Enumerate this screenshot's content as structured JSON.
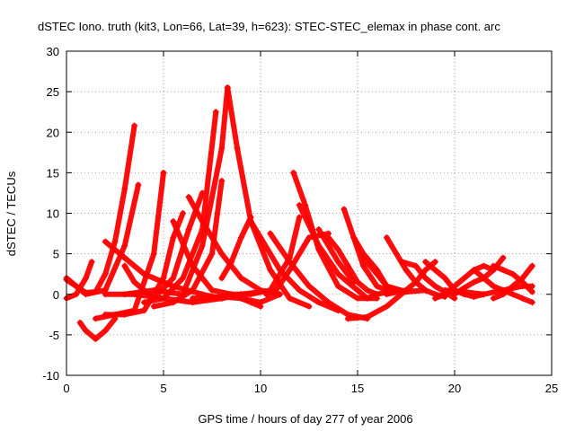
{
  "chart_data": {
    "type": "scatter",
    "title": "dSTEC Iono. truth (kit3, Lon=66, Lat=39, h=623): STEC-STEC_elemax in phase cont. arc",
    "xlabel": "GPS time / hours of day 277 of year 2006",
    "ylabel": "dSTEC  / TECUs",
    "xlim": [
      0,
      25
    ],
    "ylim": [
      -10,
      30
    ],
    "xticks": [
      0,
      5,
      10,
      15,
      20,
      25
    ],
    "yticks": [
      -10,
      -5,
      0,
      5,
      10,
      15,
      20,
      25,
      30
    ],
    "grid": true,
    "marker": "+",
    "color": "#ff0000",
    "series": [
      {
        "x": [
          0.0,
          0.5,
          1.0,
          1.5,
          2.0,
          2.5,
          3.0,
          3.5
        ],
        "y": [
          1.8,
          1.0,
          0.2,
          0.3,
          2.5,
          6.5,
          13.0,
          20.8
        ]
      },
      {
        "x": [
          0.0,
          0.5,
          1.0,
          1.3
        ],
        "y": [
          -0.5,
          0.0,
          2.0,
          4.0
        ]
      },
      {
        "x": [
          0.0,
          1.0,
          2.0,
          3.0,
          3.7
        ],
        "y": [
          2.0,
          0.0,
          0.5,
          6.0,
          13.5
        ]
      },
      {
        "x": [
          0.7,
          1.0,
          1.5,
          2.0,
          2.5
        ],
        "y": [
          -3.5,
          -4.5,
          -5.5,
          -4.5,
          -3.0
        ]
      },
      {
        "x": [
          1.5,
          2.5,
          3.5,
          4.5,
          5.0
        ],
        "y": [
          -3.0,
          -2.5,
          -2.0,
          5.0,
          15.0
        ]
      },
      {
        "x": [
          2.0,
          3.0,
          4.0,
          5.0,
          5.5,
          6.0
        ],
        "y": [
          -2.5,
          -2.5,
          -2.0,
          2.0,
          7.0,
          10.0
        ]
      },
      {
        "x": [
          2.0,
          3.0,
          4.0,
          5.5,
          7.0,
          8.0,
          9.0
        ],
        "y": [
          6.5,
          4.5,
          2.5,
          1.0,
          0.0,
          -0.5,
          0.0
        ]
      },
      {
        "x": [
          2.0,
          3.5,
          5.0,
          6.5,
          8.0,
          9.0,
          10.0
        ],
        "y": [
          0.0,
          0.0,
          -0.5,
          -1.0,
          -0.5,
          0.0,
          0.3
        ]
      },
      {
        "x": [
          3.0,
          4.5,
          6.0,
          7.0,
          8.0,
          8.3
        ],
        "y": [
          0.0,
          0.5,
          0.0,
          6.0,
          18.0,
          25.5
        ]
      },
      {
        "x": [
          3.0,
          3.5,
          4.5,
          5.5,
          6.3,
          7.0
        ],
        "y": [
          3.5,
          1.5,
          -0.5,
          2.0,
          8.0,
          12.5
        ]
      },
      {
        "x": [
          4.0,
          5.0,
          6.0,
          7.0,
          7.7
        ],
        "y": [
          -1.0,
          -0.5,
          2.0,
          8.0,
          22.5
        ]
      },
      {
        "x": [
          4.5,
          5.5,
          6.5,
          7.5,
          8.0
        ],
        "y": [
          -1.5,
          -1.0,
          0.5,
          5.0,
          14.0
        ]
      },
      {
        "x": [
          5.5,
          6.5,
          7.5,
          8.5,
          9.5,
          10.0
        ],
        "y": [
          9.0,
          3.5,
          0.5,
          0.0,
          -1.0,
          -1.5
        ]
      },
      {
        "x": [
          6.3,
          7.0,
          8.0,
          9.0,
          10.0,
          11.0
        ],
        "y": [
          12.0,
          9.0,
          5.0,
          2.0,
          0.5,
          0.0
        ]
      },
      {
        "x": [
          6.5,
          8.0,
          9.0,
          10.0,
          11.0
        ],
        "y": [
          -0.5,
          -0.3,
          -0.5,
          -1.0,
          0.0
        ]
      },
      {
        "x": [
          7.0,
          7.5,
          8.5,
          9.5,
          10.5,
          11.5,
          12.0
        ],
        "y": [
          -0.5,
          -0.5,
          0.0,
          0.0,
          0.5,
          4.5,
          9.5
        ]
      },
      {
        "x": [
          8.3,
          8.8,
          9.5,
          10.5,
          11.5,
          12.5
        ],
        "y": [
          25.5,
          18.0,
          9.0,
          3.0,
          -0.5,
          -1.5
        ]
      },
      {
        "x": [
          8.0,
          8.5,
          9.0,
          9.5
        ],
        "y": [
          2.0,
          4.0,
          7.0,
          9.5
        ]
      },
      {
        "x": [
          9.5,
          10.0,
          11.0,
          12.0,
          13.0,
          14.0
        ],
        "y": [
          9.0,
          7.0,
          3.0,
          0.5,
          -1.0,
          -2.0
        ]
      },
      {
        "x": [
          10.5,
          11.5,
          12.5,
          13.5,
          14.5,
          15.5
        ],
        "y": [
          7.5,
          4.0,
          1.0,
          -1.0,
          -2.5,
          -3.0
        ]
      },
      {
        "x": [
          11.7,
          12.3,
          13.0,
          14.0,
          15.0,
          16.0
        ],
        "y": [
          15.0,
          11.0,
          5.5,
          1.0,
          -0.5,
          -0.5
        ]
      },
      {
        "x": [
          12.0,
          13.0,
          14.0,
          15.0,
          15.5,
          16.0
        ],
        "y": [
          11.0,
          6.0,
          2.5,
          0.5,
          -0.5,
          0.0
        ]
      },
      {
        "x": [
          10.3,
          10.8,
          11.5,
          12.5,
          13.5
        ],
        "y": [
          0.0,
          0.5,
          3.0,
          7.0,
          7.5
        ]
      },
      {
        "x": [
          13.0,
          14.0,
          14.8
        ],
        "y": [
          8.0,
          4.0,
          1.5
        ]
      },
      {
        "x": [
          13.5,
          14.0,
          14.5,
          15.0,
          15.5,
          16.0,
          17.0
        ],
        "y": [
          7.0,
          5.5,
          3.5,
          1.5,
          0.5,
          0.0,
          0.5
        ]
      },
      {
        "x": [
          14.3,
          14.8,
          15.3,
          16.0,
          16.5
        ],
        "y": [
          10.5,
          7.0,
          3.5,
          1.0,
          0.5
        ]
      },
      {
        "x": [
          14.8,
          15.3,
          16.0,
          16.5,
          17.5
        ],
        "y": [
          7.0,
          5.0,
          3.0,
          1.0,
          0.3
        ]
      },
      {
        "x": [
          15.3,
          16.0,
          16.5,
          17.5,
          18.5
        ],
        "y": [
          4.5,
          2.5,
          1.0,
          0.3,
          0.5
        ]
      },
      {
        "x": [
          14.5,
          15.5,
          16.5,
          17.5
        ],
        "y": [
          -3.0,
          -2.8,
          -1.5,
          0.5
        ]
      },
      {
        "x": [
          16.5,
          17.0,
          17.5,
          18.0,
          18.5,
          19.0,
          19.5
        ],
        "y": [
          7.0,
          5.0,
          3.0,
          1.5,
          0.5,
          0.0,
          -0.3
        ]
      },
      {
        "x": [
          17.3,
          18.0,
          18.5,
          19.0,
          19.5,
          20.0
        ],
        "y": [
          4.0,
          3.5,
          2.0,
          1.0,
          0.3,
          -0.5
        ]
      },
      {
        "x": [
          16.5,
          17.5,
          18.0,
          18.5,
          19.0
        ],
        "y": [
          0.0,
          0.5,
          1.5,
          3.0,
          4.0
        ]
      },
      {
        "x": [
          18.5,
          19.0,
          19.5,
          20.0,
          20.5,
          21.0,
          21.5
        ],
        "y": [
          4.0,
          3.0,
          2.0,
          0.5,
          0.0,
          -0.3,
          0.0
        ]
      },
      {
        "x": [
          19.0,
          19.5,
          20.0,
          20.5,
          21.0,
          21.5,
          22.0
        ],
        "y": [
          -0.5,
          0.0,
          1.0,
          2.0,
          3.0,
          3.5,
          3.0
        ]
      },
      {
        "x": [
          19.5,
          20.5,
          21.5,
          22.5,
          23.5,
          24.0
        ],
        "y": [
          0.5,
          0.3,
          0.0,
          0.5,
          1.0,
          1.0
        ]
      },
      {
        "x": [
          20.0,
          20.5,
          21.0,
          21.5,
          22.0,
          22.5
        ],
        "y": [
          0.0,
          0.8,
          1.5,
          2.0,
          3.0,
          4.5
        ]
      },
      {
        "x": [
          21.0,
          21.5,
          22.0,
          22.5,
          23.0,
          23.5,
          24.0
        ],
        "y": [
          3.0,
          2.0,
          1.0,
          0.5,
          0.0,
          -0.5,
          -1.0
        ]
      },
      {
        "x": [
          22.0,
          22.5,
          23.0,
          23.5,
          24.0
        ],
        "y": [
          -0.5,
          0.0,
          1.0,
          2.0,
          3.5
        ]
      },
      {
        "x": [
          22.0,
          22.5,
          23.0,
          23.5,
          24.0
        ],
        "y": [
          3.5,
          3.0,
          2.5,
          1.5,
          0.3
        ]
      }
    ]
  }
}
